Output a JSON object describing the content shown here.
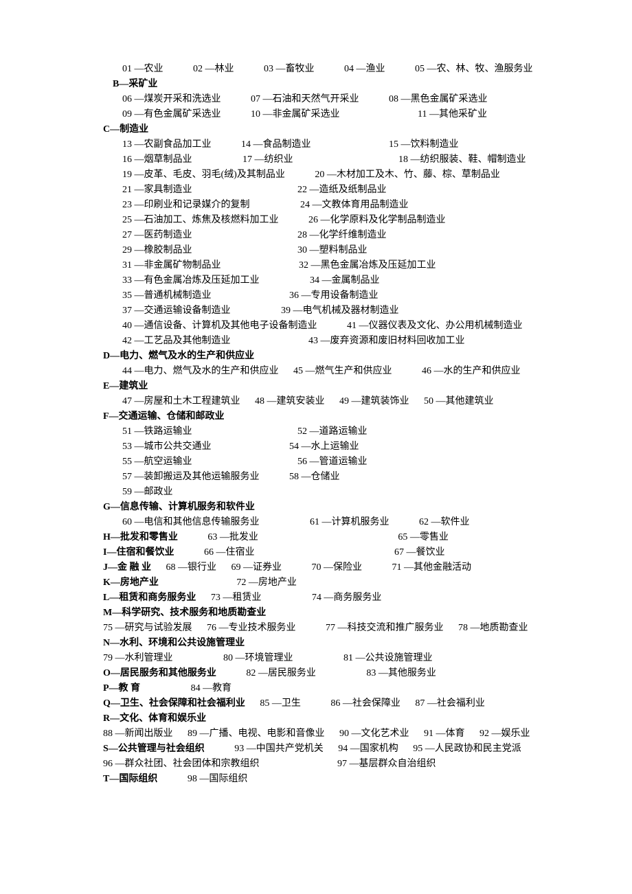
{
  "text_color": "#000000",
  "background_color": "#ffffff",
  "font_size": 14,
  "sections": {
    "A_line1": {
      "i01": "01 —农业",
      "i02": "02 —林业",
      "i03": "03 —畜牧业",
      "i04": "04 —渔业",
      "i05": "05 —农、林、牧、渔服务业"
    },
    "B_header": "B—采矿业",
    "B_line1": {
      "i06": "06 —煤炭开采和洗选业",
      "i07": "07 —石油和天然气开采业",
      "i08": "08 —黑色金属矿采选业"
    },
    "B_line2": {
      "i09": "09 —有色金属矿采选业",
      "i10": "10 —非金属矿采选业",
      "i11": "11 —其他采矿业"
    },
    "C_header": "C—制造业",
    "C_line1": {
      "i13": "13 —农副食品加工业",
      "i14": "14 —食品制造业",
      "i15": "15 —饮料制造业"
    },
    "C_line2": {
      "i16": "16 —烟草制品业",
      "i17": "17 —纺织业",
      "i18": "18 —纺织服装、鞋、帽制造业"
    },
    "C_line3": {
      "i19": "19 —皮革、毛皮、羽毛(绒)及其制品业",
      "i20": "20 —木材加工及木、竹、藤、棕、草制品业"
    },
    "C_line4": {
      "i21": "21 —家具制造业",
      "i22": "22 —造纸及纸制品业"
    },
    "C_line5": {
      "i23": "23 —印刷业和记录媒介的复制",
      "i24": "24 —文教体育用品制造业"
    },
    "C_line6": {
      "i25": "25 —石油加工、炼焦及核燃料加工业",
      "i26": "26 —化学原料及化学制品制造业"
    },
    "C_line7": {
      "i27": "27 —医药制造业",
      "i28": "28 —化学纤维制造业"
    },
    "C_line8": {
      "i29": "29 —橡胶制品业",
      "i30": "30 —塑料制品业"
    },
    "C_line9": {
      "i31": "31 —非金属矿物制品业",
      "i32": "32 —黑色金属冶炼及压延加工业"
    },
    "C_line10": {
      "i33": "33 —有色金属冶炼及压延加工业",
      "i34": "34 —金属制品业"
    },
    "C_line11": {
      "i35": "35 —普通机械制造业",
      "i36": "36 —专用设备制造业"
    },
    "C_line12": {
      "i37": "37 —交通运输设备制造业",
      "i39": "39 —电气机械及器材制造业"
    },
    "C_line13": {
      "i40": "40 —通信设备、计算机及其他电子设备制造业",
      "i41": "41 —仪器仪表及文化、办公用机械制造业"
    },
    "C_line14": {
      "i42": "42 —工艺品及其他制造业",
      "i43": "43 —废弃资源和废旧材料回收加工业"
    },
    "D_header": "D—电力、燃气及水的生产和供应业",
    "D_line1": {
      "i44": "44 —电力、燃气及水的生产和供应业",
      "i45": "45 —燃气生产和供应业",
      "i46": "46 —水的生产和供应业"
    },
    "E_header": "E—建筑业",
    "E_line1": {
      "i47": "47 —房屋和土木工程建筑业",
      "i48": "48 —建筑安装业",
      "i49": "49 —建筑装饰业",
      "i50": "50 —其他建筑业"
    },
    "F_header": "F—交通运输、仓储和邮政业",
    "F_line1": {
      "i51": "51 —铁路运输业",
      "i52": "52 —道路运输业"
    },
    "F_line2": {
      "i53": "53 —城市公共交通业",
      "i54": "54 —水上运输业"
    },
    "F_line3": {
      "i55": "55 —航空运输业",
      "i56": "56 —管道运输业"
    },
    "F_line4": {
      "i57": "57 —装卸搬运及其他运输服务业",
      "i58": "58 —仓储业"
    },
    "F_line5": {
      "i59": "59 —邮政业"
    },
    "G_header": "G—信息传输、计算机服务和软件业",
    "G_line1": {
      "i60": "60 —电信和其他信息传输服务业",
      "i61": "61 —计算机服务业",
      "i62": "62 —软件业"
    },
    "H_line": {
      "header": "H—批发和零售业",
      "i63": "63 —批发业",
      "i65": "65 —零售业"
    },
    "I_line": {
      "header": "I—住宿和餐饮业",
      "i66": "66 —住宿业",
      "i67": "67 —餐饮业"
    },
    "J_line": {
      "header": "J—金 融 业",
      "i68": "68 —银行业",
      "i69": "69 —证券业",
      "i70": "70 —保险业",
      "i71": "71 —其他金融活动"
    },
    "K_line": {
      "header": "K—房地产业",
      "i72": "72 —房地产业"
    },
    "L_line": {
      "header": "L—租赁和商务服务业",
      "i73": "73 —租赁业",
      "i74": "74 —商务服务业"
    },
    "M_header": "M—科学研究、技术服务和地质勘查业",
    "M_line1": {
      "i75": "75 —研究与试验发展",
      "i76": "76 —专业技术服务业",
      "i77": "77 —科技交流和推广服务业",
      "i78": "78 —地质勘查业"
    },
    "N_header": "N—水利、环境和公共设施管理业",
    "N_line1": {
      "i79": "79 —水利管理业",
      "i80": "80 —环境管理业",
      "i81": "81 —公共设施管理业"
    },
    "O_line": {
      "header": "O—居民服务和其他服务业",
      "i82": "82 —居民服务业",
      "i83": "83 —其他服务业"
    },
    "P_line": {
      "header": "P—教 育",
      "i84": "84 —教育"
    },
    "Q_line": {
      "header": "Q—卫生、社会保障和社会福利业",
      "i85": "85 —卫生",
      "i86": "86 —社会保障业",
      "i87": "87 —社会福利业"
    },
    "R_header": "R—文化、体育和娱乐业",
    "R_line1": {
      "i88": "88 —新闻出版业",
      "i89": "89 —广播、电视、电影和音像业",
      "i90": "90 —文化艺术业",
      "i91": "91 —体育",
      "i92": "92 —娱乐业"
    },
    "S_line1": {
      "header": "S—公共管理与社会组织",
      "i93": "93 —中国共产党机关",
      "i94": "94 —国家机构",
      "i95": "95 —人民政协和民主党派"
    },
    "S_line2": {
      "i96": "96 —群众社团、社会团体和宗教组织",
      "i97": "97 —基层群众自治组织"
    },
    "T_line": {
      "header": "T—国际组织",
      "i98": "98 —国际组织"
    }
  }
}
